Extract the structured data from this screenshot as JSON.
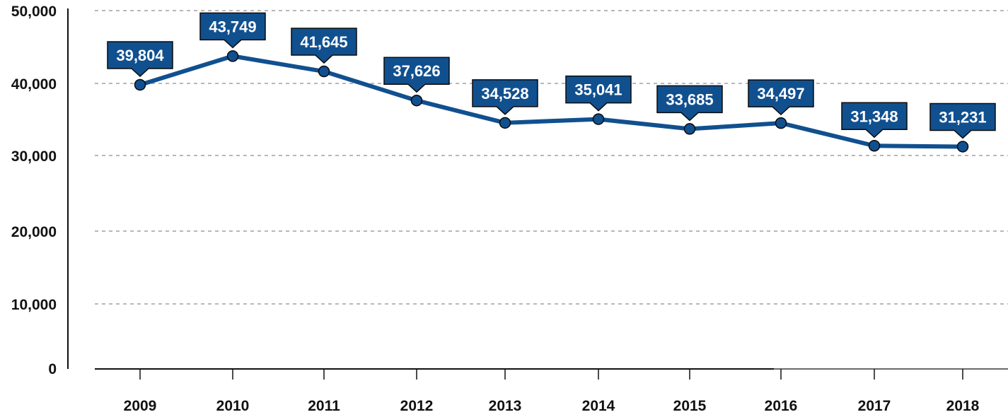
{
  "chart_data": {
    "type": "line",
    "title": "",
    "xlabel": "",
    "ylabel": "",
    "categories": [
      "2009",
      "2010",
      "2011",
      "2012",
      "2013",
      "2014",
      "2015",
      "2016",
      "2017",
      "2018"
    ],
    "series": [
      {
        "name": "Value",
        "values": [
          39804,
          43749,
          41645,
          37626,
          34528,
          35041,
          33685,
          34497,
          31348,
          31231
        ],
        "labels": [
          "39,804",
          "43,749",
          "41,645",
          "37,626",
          "34,528",
          "35,041",
          "33,685",
          "34,497",
          "31,348",
          "31,231"
        ]
      }
    ],
    "y_ticks": [
      0,
      10000,
      20000,
      30000,
      40000,
      50000
    ],
    "y_tick_labels": [
      "0",
      "10,000",
      "20,000",
      "30,000",
      "40,000",
      "50,000"
    ],
    "ylim": [
      0,
      50000
    ],
    "grid": true,
    "grid_style": "dashed-horizontal",
    "legend": "none",
    "data_labels": "callout-boxes-above-points"
  },
  "colors": {
    "line": "#11508f",
    "marker": "#11508f",
    "label_bg": "#11508f",
    "label_border": "#0a0a0a",
    "label_text": "#ffffff",
    "grid": "#a0a0a0",
    "axis": "#111111",
    "tick_text": "#111111"
  }
}
